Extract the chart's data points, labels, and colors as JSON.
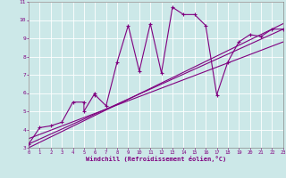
{
  "xlabel": "Windchill (Refroidissement éolien,°C)",
  "bg_color": "#cce8e8",
  "line_color": "#800080",
  "grid_color": "#ffffff",
  "xlim": [
    0,
    23
  ],
  "ylim": [
    3,
    11
  ],
  "xticks": [
    0,
    1,
    2,
    3,
    4,
    5,
    6,
    7,
    8,
    9,
    10,
    11,
    12,
    13,
    14,
    15,
    16,
    17,
    18,
    19,
    20,
    21,
    22,
    23
  ],
  "yticks": [
    3,
    4,
    5,
    6,
    7,
    8,
    9,
    10,
    11
  ],
  "data_x": [
    0,
    1,
    2,
    3,
    4,
    5,
    5,
    6,
    6,
    7,
    8,
    9,
    10,
    11,
    12,
    13,
    14,
    15,
    16,
    17,
    18,
    19,
    20,
    21,
    22,
    23
  ],
  "data_y": [
    3.2,
    4.1,
    4.2,
    4.4,
    5.5,
    5.5,
    5.0,
    6.0,
    5.9,
    5.3,
    7.7,
    9.7,
    7.2,
    9.8,
    7.1,
    10.7,
    10.3,
    10.3,
    9.7,
    5.9,
    7.7,
    8.8,
    9.2,
    9.1,
    9.5,
    9.5
  ],
  "line1_x": [
    0,
    23
  ],
  "line1_y": [
    3.2,
    9.5
  ],
  "line2_x": [
    0,
    23
  ],
  "line2_y": [
    3.5,
    8.8
  ],
  "line3_x": [
    0,
    23
  ],
  "line3_y": [
    3.0,
    9.8
  ]
}
